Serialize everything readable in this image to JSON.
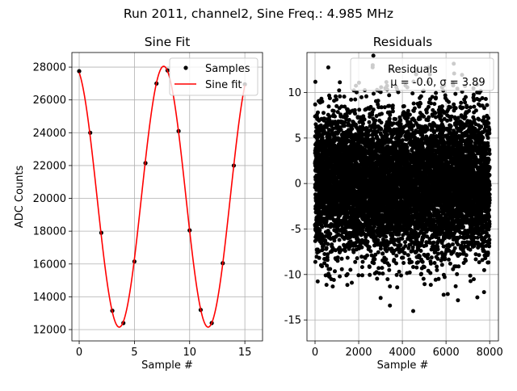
{
  "suptitle": "Run 2011, channel2, Sine Freq.: 4.985 MHz",
  "chart_data": [
    {
      "type": "line",
      "title": "Sine Fit",
      "xlabel": "Sample #",
      "ylabel": "ADC Counts",
      "xlim": [
        -0.66,
        16.6
      ],
      "ylim": [
        11310,
        28890
      ],
      "xticks": [
        0,
        5,
        10,
        15
      ],
      "yticks": [
        12000,
        14000,
        16000,
        18000,
        20000,
        22000,
        24000,
        26000,
        28000
      ],
      "grid": true,
      "legend": {
        "placement": "top-right",
        "entries": [
          "Samples",
          "Sine fit"
        ]
      },
      "samples": {
        "name": "Samples",
        "x": [
          0,
          1,
          2,
          3,
          4,
          5,
          6,
          7,
          8,
          9,
          10,
          11,
          12,
          13,
          14,
          15
        ],
        "y": [
          27750,
          24000,
          17900,
          13150,
          12400,
          16150,
          22150,
          27000,
          27800,
          24100,
          18050,
          13200,
          12400,
          16050,
          22000,
          26950
        ]
      },
      "fit": {
        "name": "Sine fit",
        "offset": 20100,
        "amplitude": 7950,
        "period": 8.05,
        "peak_x": 7.65,
        "x_range": [
          0,
          15
        ]
      },
      "colors": {
        "samples": "#000000",
        "fit": "#ff0000"
      }
    },
    {
      "type": "scatter",
      "title": "Residuals",
      "xlabel": "Sample #",
      "ylabel": "",
      "xlim": [
        -370,
        8400
      ],
      "ylim": [
        -17.3,
        14.4
      ],
      "xticks": [
        0,
        2000,
        4000,
        6000,
        8000
      ],
      "yticks": [
        -15,
        -10,
        -5,
        0,
        5,
        10
      ],
      "grid": true,
      "legend": {
        "placement": "top-right",
        "entries": [
          "Residuals",
          "μ = -0.0, σ = 3.89"
        ]
      },
      "n_points": 8000,
      "mean": 0.0,
      "sigma": 3.89,
      "colors": {
        "points": "#000000"
      }
    }
  ]
}
